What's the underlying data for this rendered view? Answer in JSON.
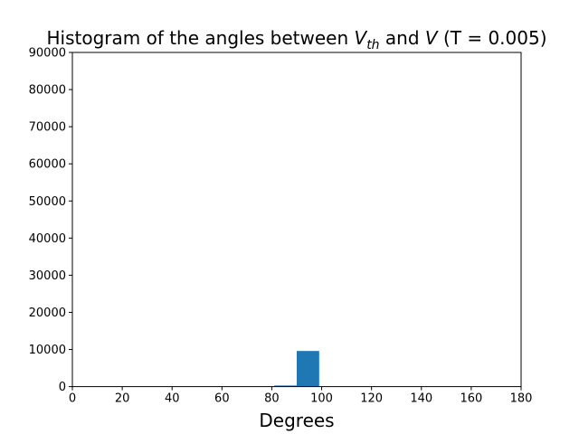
{
  "chart_data": {
    "type": "bar",
    "title_prefix": "Histogram of the angles between ",
    "title_v": "V",
    "title_sub": "th",
    "title_and": " and ",
    "title_v2": "V",
    "title_suffix": " (T = 0.005)",
    "xlabel": "Degrees",
    "ylabel": "",
    "xlim": [
      0,
      180
    ],
    "ylim": [
      0,
      90000
    ],
    "x_ticks": [
      0,
      20,
      40,
      60,
      80,
      100,
      120,
      140,
      160,
      180
    ],
    "y_ticks": [
      0,
      10000,
      20000,
      30000,
      40000,
      50000,
      60000,
      70000,
      80000,
      90000
    ],
    "bars": [
      {
        "x_start": 81,
        "x_end": 90,
        "value": 300
      },
      {
        "x_start": 90,
        "x_end": 99,
        "value": 9600
      }
    ],
    "bar_color": "#1f77b4",
    "grid": false
  }
}
